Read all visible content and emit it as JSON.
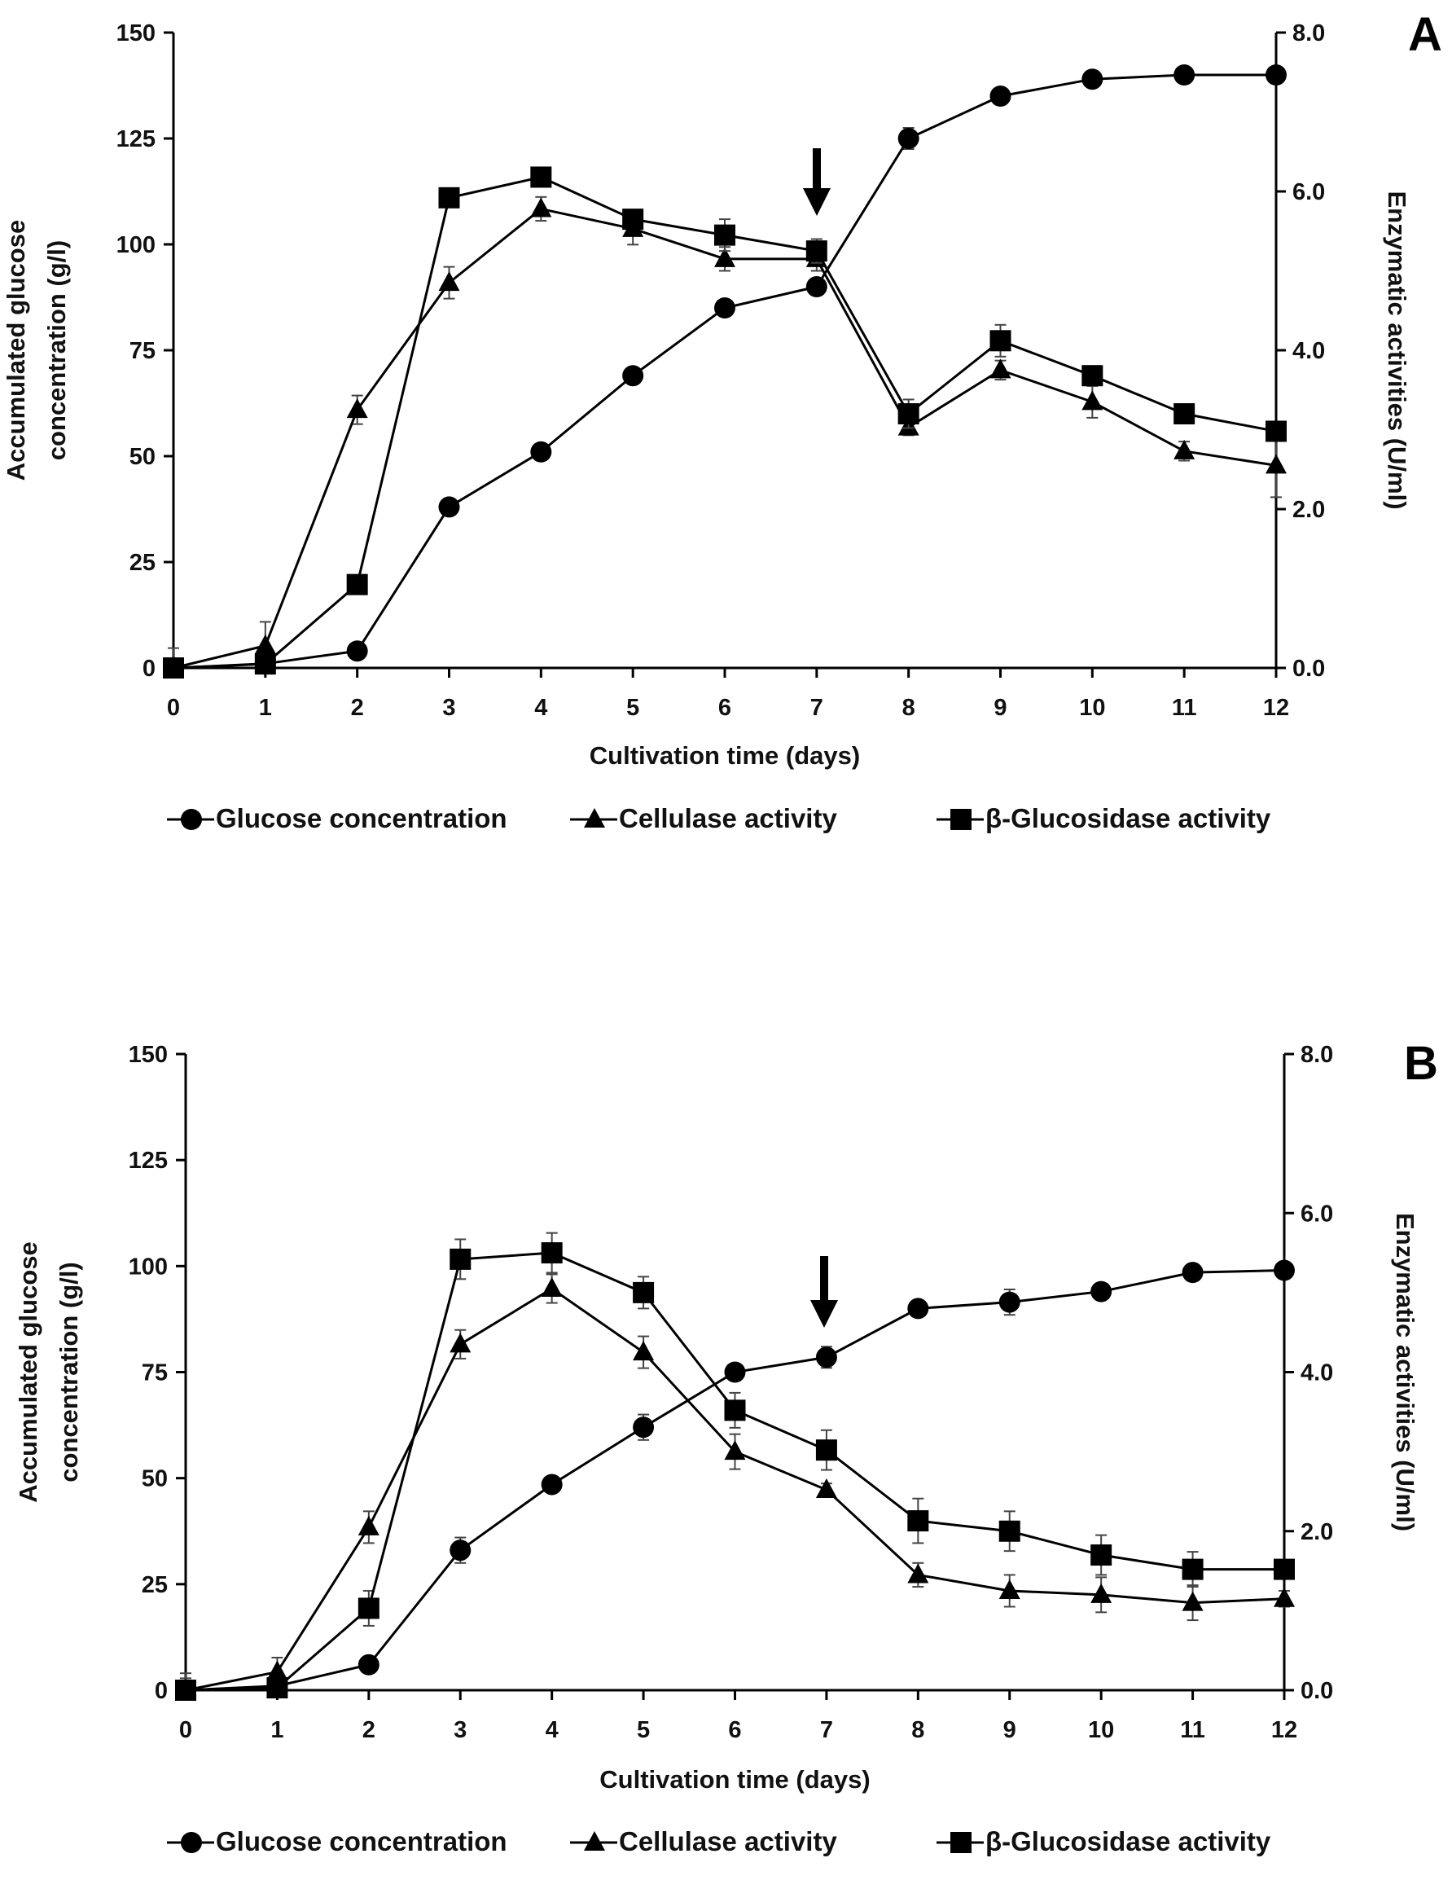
{
  "chart_data": [
    {
      "type": "line",
      "panel_label": "A",
      "categories": [
        "0",
        "1",
        "2",
        "3",
        "4",
        "5",
        "6",
        "7",
        "8",
        "9",
        "10",
        "11",
        "12"
      ],
      "x": [
        0,
        1,
        2,
        3,
        4,
        5,
        6,
        7,
        8,
        9,
        10,
        11,
        12
      ],
      "xlabel": "Cultivation time (days)",
      "ylabel_left": [
        "Accumulated glucose",
        "concentration (g/l)"
      ],
      "ylabel_right": "Enzymatic activities (U/ml)",
      "ylim_left": [
        0,
        150
      ],
      "ylim_right": [
        0,
        8
      ],
      "yticks_left": [
        "0",
        "25",
        "50",
        "75",
        "100",
        "125",
        "150"
      ],
      "yticks_right": [
        "0.0",
        "2.0",
        "4.0",
        "6.0",
        "8.0"
      ],
      "arrow_at_day": 7,
      "series": [
        {
          "name": "Glucose concentration",
          "axis": "left",
          "marker": "circle",
          "values": [
            0,
            1,
            4,
            38,
            51,
            69,
            85,
            90,
            125,
            135,
            139,
            140,
            140
          ],
          "errors": [
            0,
            0,
            0,
            0,
            0,
            1.5,
            0,
            1.5,
            2.5,
            0,
            0,
            0,
            0
          ]
        },
        {
          "name": "Cellulase activity",
          "axis": "right",
          "marker": "triangle",
          "values": [
            0,
            0.28,
            3.25,
            4.85,
            5.78,
            5.53,
            5.15,
            5.15,
            3.03,
            3.75,
            3.35,
            2.73,
            2.55
          ],
          "errors": [
            0.25,
            0.3,
            0.18,
            0.2,
            0.15,
            0.2,
            0.15,
            0.15,
            0.1,
            0.12,
            0.2,
            0.12,
            0.4
          ]
        },
        {
          "name": "β-Glucosidase activity",
          "axis": "right",
          "marker": "square",
          "values": [
            0,
            0.05,
            1.05,
            5.92,
            6.18,
            5.65,
            5.45,
            5.25,
            3.2,
            4.12,
            3.68,
            3.2,
            2.98
          ],
          "errors": [
            0,
            0,
            0,
            0.1,
            0.08,
            0.1,
            0.2,
            0.15,
            0.18,
            0.2,
            0,
            0,
            0
          ]
        }
      ]
    },
    {
      "type": "line",
      "panel_label": "B",
      "categories": [
        "0",
        "1",
        "2",
        "3",
        "4",
        "5",
        "6",
        "7",
        "8",
        "9",
        "10",
        "11",
        "12"
      ],
      "x": [
        0,
        1,
        2,
        3,
        4,
        5,
        6,
        7,
        8,
        9,
        10,
        11,
        12
      ],
      "xlabel": "Cultivation time (days)",
      "ylabel_left": [
        "Accumulated glucose",
        "concentration (g/l)"
      ],
      "ylabel_right": "Enzymatic activities (U/ml)",
      "ylim_left": [
        0,
        150
      ],
      "ylim_right": [
        0,
        8
      ],
      "yticks_left": [
        "0",
        "25",
        "50",
        "75",
        "100",
        "125",
        "150"
      ],
      "yticks_right": [
        "0.0",
        "2.0",
        "4.0",
        "6.0",
        "8.0"
      ],
      "arrow_at_day": 7,
      "series": [
        {
          "name": "Glucose concentration",
          "axis": "left",
          "marker": "circle",
          "values": [
            0,
            1,
            6,
            33,
            48.5,
            62,
            75,
            78.5,
            90,
            91.5,
            94,
            98.5,
            99
          ],
          "errors": [
            4,
            0,
            0,
            3,
            0,
            3,
            0,
            2.5,
            0,
            3,
            0,
            0,
            0
          ]
        },
        {
          "name": "Cellulase activity",
          "axis": "right",
          "marker": "triangle",
          "values": [
            0,
            0.23,
            2.05,
            4.35,
            5.05,
            4.25,
            3.0,
            2.52,
            1.45,
            1.25,
            1.2,
            1.1,
            1.15
          ],
          "errors": [
            0.15,
            0.18,
            0.2,
            0.18,
            0.18,
            0.2,
            0.22,
            0.08,
            0.15,
            0.2,
            0.22,
            0.22,
            0.1
          ]
        },
        {
          "name": "β-Glucosidase activity",
          "axis": "right",
          "marker": "square",
          "values": [
            0,
            0.03,
            1.03,
            5.42,
            5.5,
            5.0,
            3.52,
            3.02,
            2.13,
            2.0,
            1.7,
            1.52,
            1.52
          ],
          "errors": [
            0,
            0,
            0.22,
            0.25,
            0.25,
            0.2,
            0.22,
            0.25,
            0.28,
            0.25,
            0.25,
            0.22,
            0
          ]
        }
      ]
    }
  ]
}
